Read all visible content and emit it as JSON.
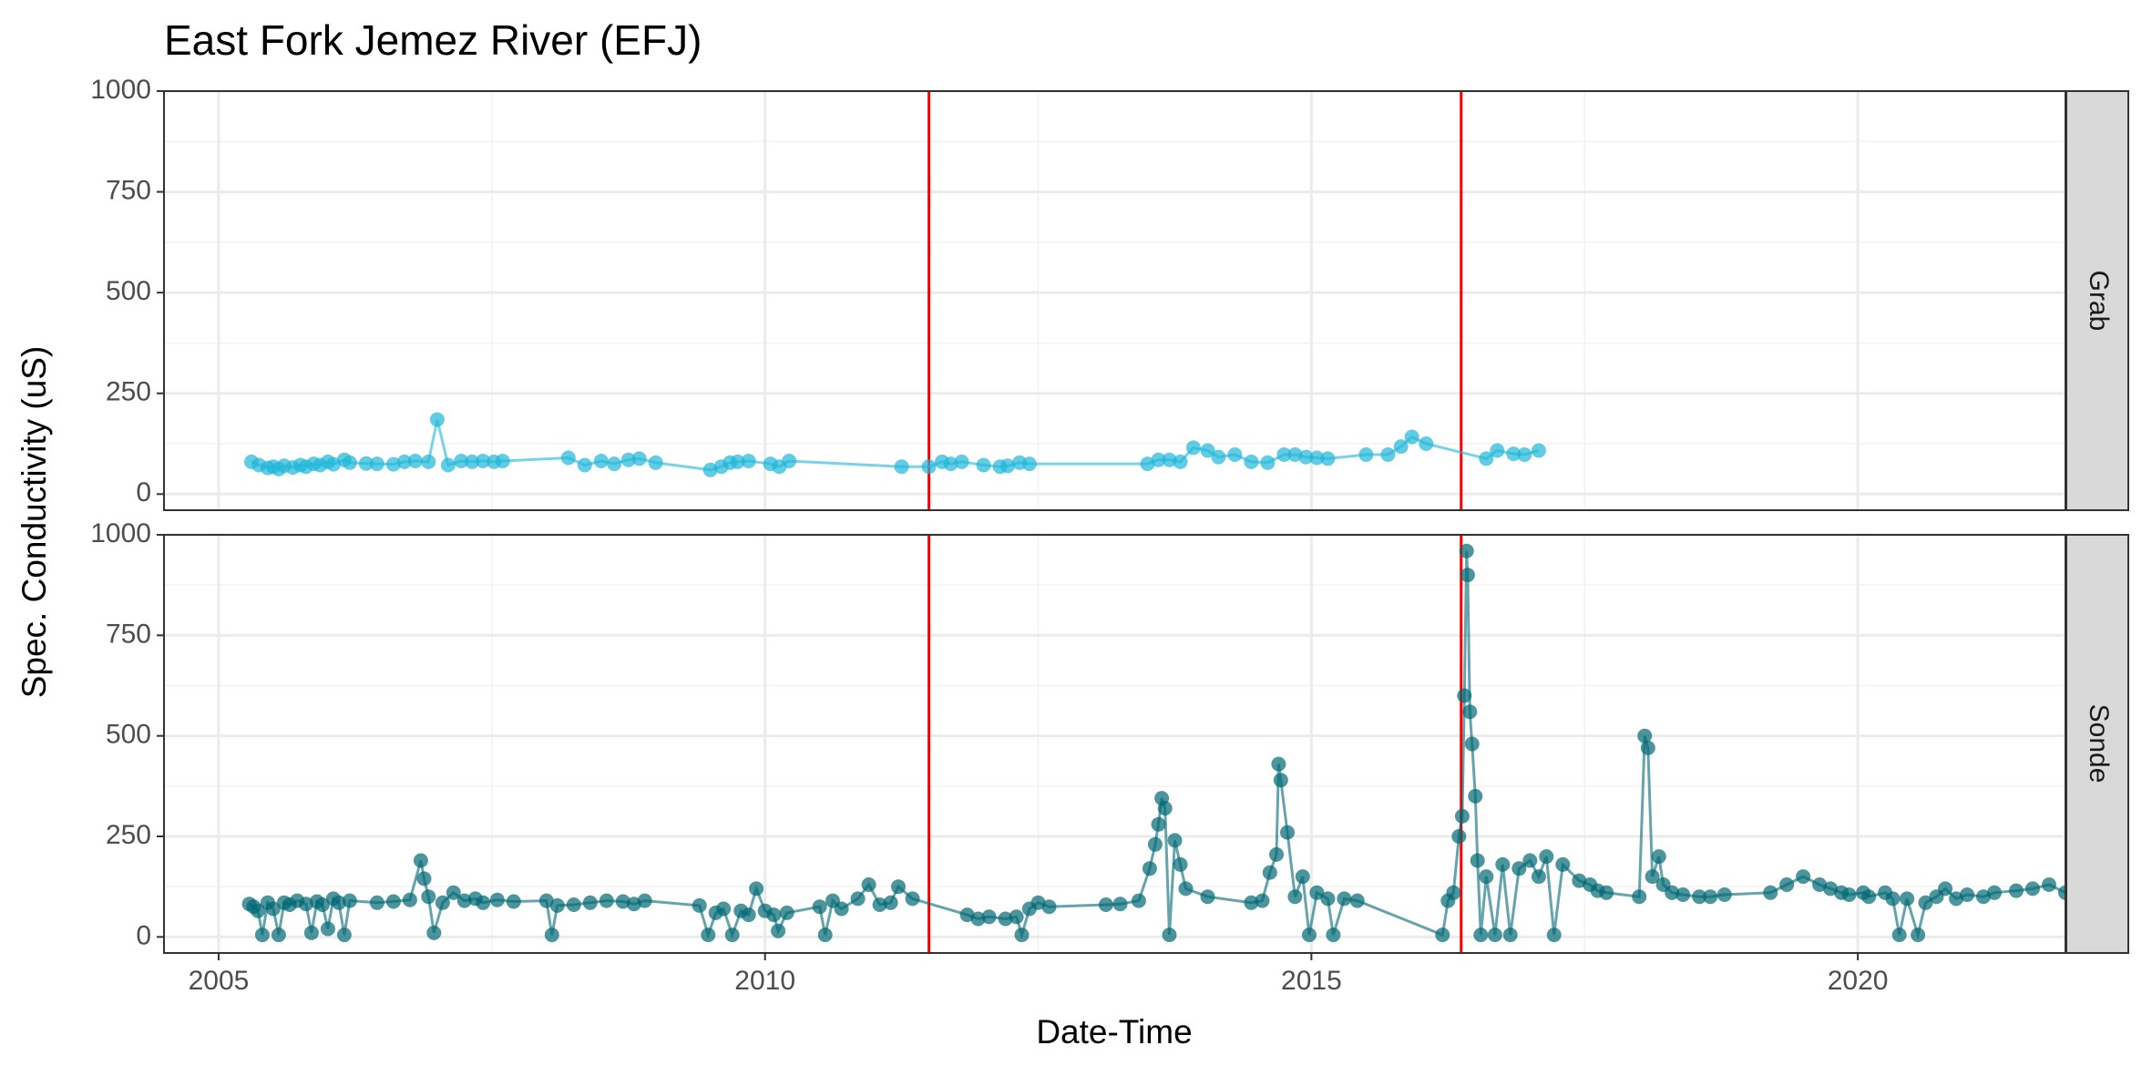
{
  "chart_data": {
    "type": "scatter",
    "title": "East Fork Jemez River (EFJ)",
    "xlabel": "Date-Time",
    "ylabel": "Spec. Conductivity (uS)",
    "x_ticks": [
      "2005",
      "2010",
      "2015",
      "2020"
    ],
    "y_ticks": [
      "0",
      "250",
      "500",
      "750",
      "1000"
    ],
    "xlim": [
      2004.5,
      2021.9
    ],
    "ylim": [
      -40,
      1000
    ],
    "grid": true,
    "legend": "none",
    "vertical_lines": [
      {
        "x": 2011.5,
        "color": "#ff0000"
      },
      {
        "x": 2016.37,
        "color": "#ff0000"
      }
    ],
    "panels": [
      {
        "strip_label": "Grab",
        "color": "#1fb6d9",
        "connected": true,
        "points": [
          [
            2005.3,
            80
          ],
          [
            2005.37,
            72
          ],
          [
            2005.45,
            65
          ],
          [
            2005.5,
            68
          ],
          [
            2005.55,
            62
          ],
          [
            2005.6,
            70
          ],
          [
            2005.68,
            66
          ],
          [
            2005.75,
            72
          ],
          [
            2005.8,
            68
          ],
          [
            2005.87,
            75
          ],
          [
            2005.93,
            72
          ],
          [
            2006.0,
            80
          ],
          [
            2006.05,
            74
          ],
          [
            2006.15,
            85
          ],
          [
            2006.2,
            78
          ],
          [
            2006.35,
            76
          ],
          [
            2006.45,
            75
          ],
          [
            2006.6,
            74
          ],
          [
            2006.7,
            80
          ],
          [
            2006.8,
            82
          ],
          [
            2006.92,
            80
          ],
          [
            2007.0,
            185
          ],
          [
            2007.1,
            72
          ],
          [
            2007.22,
            82
          ],
          [
            2007.32,
            80
          ],
          [
            2007.42,
            82
          ],
          [
            2007.52,
            80
          ],
          [
            2007.6,
            82
          ],
          [
            2008.2,
            90
          ],
          [
            2008.35,
            72
          ],
          [
            2008.5,
            82
          ],
          [
            2008.62,
            75
          ],
          [
            2008.75,
            85
          ],
          [
            2008.85,
            88
          ],
          [
            2009.0,
            78
          ],
          [
            2009.5,
            60
          ],
          [
            2009.6,
            68
          ],
          [
            2009.68,
            78
          ],
          [
            2009.75,
            80
          ],
          [
            2009.85,
            82
          ],
          [
            2010.05,
            75
          ],
          [
            2010.13,
            68
          ],
          [
            2010.22,
            82
          ],
          [
            2011.25,
            68
          ],
          [
            2011.5,
            68
          ],
          [
            2011.62,
            80
          ],
          [
            2011.7,
            75
          ],
          [
            2011.8,
            80
          ],
          [
            2012.0,
            72
          ],
          [
            2012.15,
            68
          ],
          [
            2012.22,
            70
          ],
          [
            2012.33,
            78
          ],
          [
            2012.42,
            75
          ],
          [
            2013.5,
            75
          ],
          [
            2013.6,
            85
          ],
          [
            2013.7,
            85
          ],
          [
            2013.8,
            80
          ],
          [
            2013.92,
            115
          ],
          [
            2014.05,
            108
          ],
          [
            2014.15,
            92
          ],
          [
            2014.3,
            98
          ],
          [
            2014.45,
            80
          ],
          [
            2014.6,
            78
          ],
          [
            2014.75,
            98
          ],
          [
            2014.85,
            98
          ],
          [
            2014.95,
            92
          ],
          [
            2015.05,
            90
          ],
          [
            2015.15,
            88
          ],
          [
            2015.5,
            98
          ],
          [
            2015.7,
            98
          ],
          [
            2015.82,
            118
          ],
          [
            2015.92,
            142
          ],
          [
            2016.05,
            125
          ],
          [
            2016.6,
            88
          ],
          [
            2016.7,
            108
          ],
          [
            2016.85,
            100
          ],
          [
            2016.95,
            98
          ],
          [
            2017.08,
            108
          ]
        ]
      },
      {
        "strip_label": "Sonde",
        "color": "#006874",
        "connected": true,
        "points": [
          [
            2005.28,
            82
          ],
          [
            2005.32,
            75
          ],
          [
            2005.36,
            65
          ],
          [
            2005.4,
            5
          ],
          [
            2005.45,
            85
          ],
          [
            2005.5,
            70
          ],
          [
            2005.55,
            5
          ],
          [
            2005.6,
            85
          ],
          [
            2005.65,
            80
          ],
          [
            2005.72,
            90
          ],
          [
            2005.8,
            82
          ],
          [
            2005.85,
            10
          ],
          [
            2005.9,
            88
          ],
          [
            2005.95,
            80
          ],
          [
            2006.0,
            20
          ],
          [
            2006.05,
            95
          ],
          [
            2006.1,
            85
          ],
          [
            2006.15,
            5
          ],
          [
            2006.2,
            90
          ],
          [
            2006.45,
            85
          ],
          [
            2006.6,
            88
          ],
          [
            2006.75,
            92
          ],
          [
            2006.85,
            190
          ],
          [
            2006.88,
            145
          ],
          [
            2006.92,
            100
          ],
          [
            2006.97,
            10
          ],
          [
            2007.05,
            85
          ],
          [
            2007.15,
            110
          ],
          [
            2007.25,
            90
          ],
          [
            2007.35,
            95
          ],
          [
            2007.42,
            85
          ],
          [
            2007.55,
            92
          ],
          [
            2007.7,
            88
          ],
          [
            2008.0,
            90
          ],
          [
            2008.05,
            5
          ],
          [
            2008.1,
            78
          ],
          [
            2008.25,
            80
          ],
          [
            2008.4,
            85
          ],
          [
            2008.55,
            90
          ],
          [
            2008.7,
            88
          ],
          [
            2008.8,
            82
          ],
          [
            2008.9,
            90
          ],
          [
            2009.4,
            78
          ],
          [
            2009.48,
            5
          ],
          [
            2009.55,
            60
          ],
          [
            2009.62,
            70
          ],
          [
            2009.7,
            5
          ],
          [
            2009.78,
            65
          ],
          [
            2009.85,
            55
          ],
          [
            2009.92,
            120
          ],
          [
            2010.0,
            65
          ],
          [
            2010.08,
            55
          ],
          [
            2010.12,
            15
          ],
          [
            2010.2,
            60
          ],
          [
            2010.5,
            75
          ],
          [
            2010.55,
            5
          ],
          [
            2010.62,
            90
          ],
          [
            2010.7,
            70
          ],
          [
            2010.85,
            95
          ],
          [
            2010.95,
            130
          ],
          [
            2011.05,
            80
          ],
          [
            2011.15,
            85
          ],
          [
            2011.22,
            125
          ],
          [
            2011.35,
            95
          ],
          [
            2011.85,
            55
          ],
          [
            2011.95,
            45
          ],
          [
            2012.05,
            50
          ],
          [
            2012.2,
            45
          ],
          [
            2012.3,
            50
          ],
          [
            2012.35,
            5
          ],
          [
            2012.42,
            70
          ],
          [
            2012.5,
            85
          ],
          [
            2012.6,
            75
          ],
          [
            2013.12,
            80
          ],
          [
            2013.25,
            82
          ],
          [
            2013.42,
            90
          ],
          [
            2013.52,
            170
          ],
          [
            2013.57,
            230
          ],
          [
            2013.6,
            280
          ],
          [
            2013.63,
            345
          ],
          [
            2013.66,
            320
          ],
          [
            2013.7,
            5
          ],
          [
            2013.75,
            240
          ],
          [
            2013.8,
            180
          ],
          [
            2013.85,
            120
          ],
          [
            2014.05,
            100
          ],
          [
            2014.45,
            85
          ],
          [
            2014.55,
            90
          ],
          [
            2014.62,
            160
          ],
          [
            2014.68,
            205
          ],
          [
            2014.7,
            430
          ],
          [
            2014.72,
            390
          ],
          [
            2014.78,
            260
          ],
          [
            2014.85,
            100
          ],
          [
            2014.92,
            150
          ],
          [
            2014.98,
            5
          ],
          [
            2015.05,
            110
          ],
          [
            2015.15,
            95
          ],
          [
            2015.2,
            5
          ],
          [
            2015.3,
            95
          ],
          [
            2015.42,
            90
          ],
          [
            2016.2,
            5
          ],
          [
            2016.25,
            90
          ],
          [
            2016.3,
            110
          ],
          [
            2016.35,
            250
          ],
          [
            2016.38,
            300
          ],
          [
            2016.4,
            600
          ],
          [
            2016.42,
            960
          ],
          [
            2016.43,
            900
          ],
          [
            2016.45,
            560
          ],
          [
            2016.47,
            480
          ],
          [
            2016.5,
            350
          ],
          [
            2016.52,
            190
          ],
          [
            2016.55,
            5
          ],
          [
            2016.6,
            150
          ],
          [
            2016.68,
            5
          ],
          [
            2016.75,
            180
          ],
          [
            2016.82,
            5
          ],
          [
            2016.9,
            170
          ],
          [
            2017.0,
            190
          ],
          [
            2017.08,
            150
          ],
          [
            2017.15,
            200
          ],
          [
            2017.22,
            5
          ],
          [
            2017.3,
            180
          ],
          [
            2017.45,
            140
          ],
          [
            2017.55,
            130
          ],
          [
            2017.62,
            115
          ],
          [
            2017.7,
            110
          ],
          [
            2018.0,
            100
          ],
          [
            2018.05,
            500
          ],
          [
            2018.08,
            470
          ],
          [
            2018.12,
            150
          ],
          [
            2018.18,
            200
          ],
          [
            2018.22,
            130
          ],
          [
            2018.3,
            110
          ],
          [
            2018.4,
            105
          ],
          [
            2018.55,
            100
          ],
          [
            2018.65,
            100
          ],
          [
            2018.78,
            105
          ],
          [
            2019.2,
            110
          ],
          [
            2019.35,
            130
          ],
          [
            2019.5,
            150
          ],
          [
            2019.65,
            130
          ],
          [
            2019.75,
            120
          ],
          [
            2019.85,
            110
          ],
          [
            2019.92,
            105
          ],
          [
            2020.05,
            110
          ],
          [
            2020.1,
            100
          ],
          [
            2020.25,
            110
          ],
          [
            2020.32,
            95
          ],
          [
            2020.38,
            5
          ],
          [
            2020.45,
            95
          ],
          [
            2020.55,
            5
          ],
          [
            2020.62,
            85
          ],
          [
            2020.72,
            100
          ],
          [
            2020.8,
            120
          ],
          [
            2020.9,
            95
          ],
          [
            2021.0,
            105
          ],
          [
            2021.15,
            100
          ],
          [
            2021.25,
            110
          ],
          [
            2021.45,
            115
          ],
          [
            2021.6,
            120
          ],
          [
            2021.75,
            130
          ],
          [
            2021.9,
            110
          ]
        ]
      }
    ]
  }
}
